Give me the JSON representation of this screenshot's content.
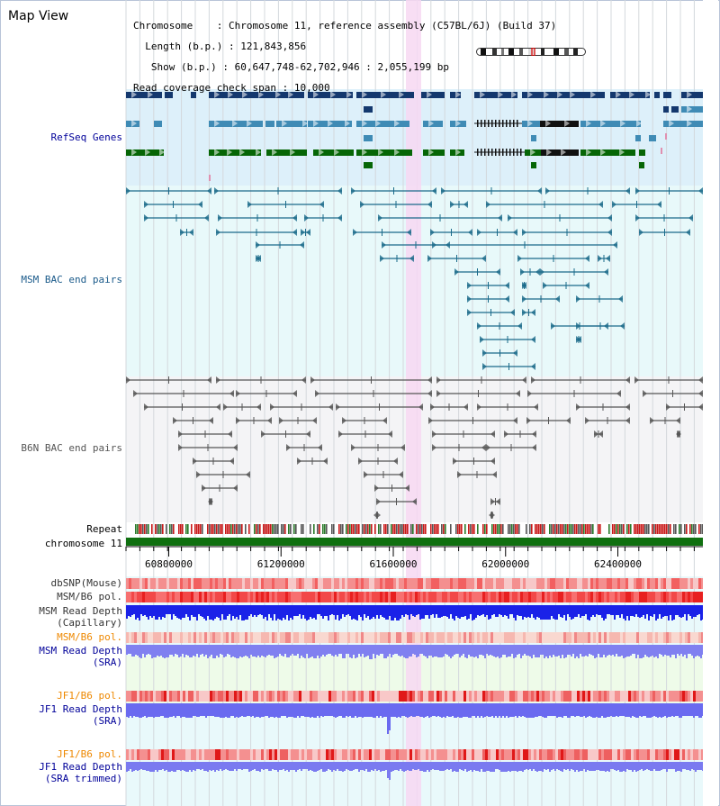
{
  "window": {
    "title": "Map View"
  },
  "info": {
    "chromosome_label": "Chromosome",
    "chromosome_value": "Chromosome 11, reference assembly (C57BL/6J) (Build 37)",
    "length_label": "Length (b.p.)",
    "length_value": "121,843,856",
    "show_label": "Show (b.p.)",
    "show_value": "60,647,748-62,702,946 : 2,055,199 bp",
    "coverage_label": "Read coverage check span",
    "coverage_value": "10,000"
  },
  "tracks": {
    "refseq": "RefSeq Genes",
    "msm_bac": "MSM BAC end pairs",
    "b6n_bac": "B6N BAC end pairs",
    "repeat": "Repeat",
    "chromosome": "chromosome 11",
    "dbsnp": "dbSNP(Mouse)",
    "msm_b6_pol_1": "MSM/B6 pol.",
    "msm_depth_cap_1": "MSM Read Depth",
    "msm_depth_cap_2": "(Capillary)",
    "msm_b6_pol_2": "MSM/B6 pol.",
    "msm_depth_sra_1": "MSM Read Depth",
    "msm_depth_sra_2": "(SRA)",
    "jf1_b6_pol_1": "JF1/B6 pol.",
    "jf1_depth_sra_1": "JF1 Read Depth",
    "jf1_depth_sra_2": "(SRA)",
    "jf1_b6_pol_2": "JF1/B6 pol.",
    "jf1_depth_trim_1": "JF1 Read Depth",
    "jf1_depth_trim_2": "(SRA trimmed)"
  },
  "axis": {
    "ticks": [
      "60800000",
      "61200000",
      "61600000",
      "62000000",
      "62400000"
    ],
    "tick_values": [
      60800000,
      61200000,
      61600000,
      62000000,
      62400000
    ],
    "range_bp": [
      60647748,
      62702946
    ]
  },
  "colors": {
    "highlight": "#f7d8f2",
    "refseq_bg": "#ddf0fa",
    "msm_bg": "#e8f9fa",
    "b6n_bg": "#f4f4f6",
    "gene_dark": "#14386e",
    "gene_mid": "#3f8bb5",
    "gene_green": "#066606",
    "msm_line": "#1a6a8a",
    "b6n_line": "#555555",
    "chromosome_bar": "#107010",
    "pol_red": "#f04040",
    "depth_blue": "#1a22e8",
    "depth_light": "#8080f0",
    "label_navy": "#000099",
    "label_teal": "#1a5a8a",
    "label_orange": "#ee8800"
  }
}
